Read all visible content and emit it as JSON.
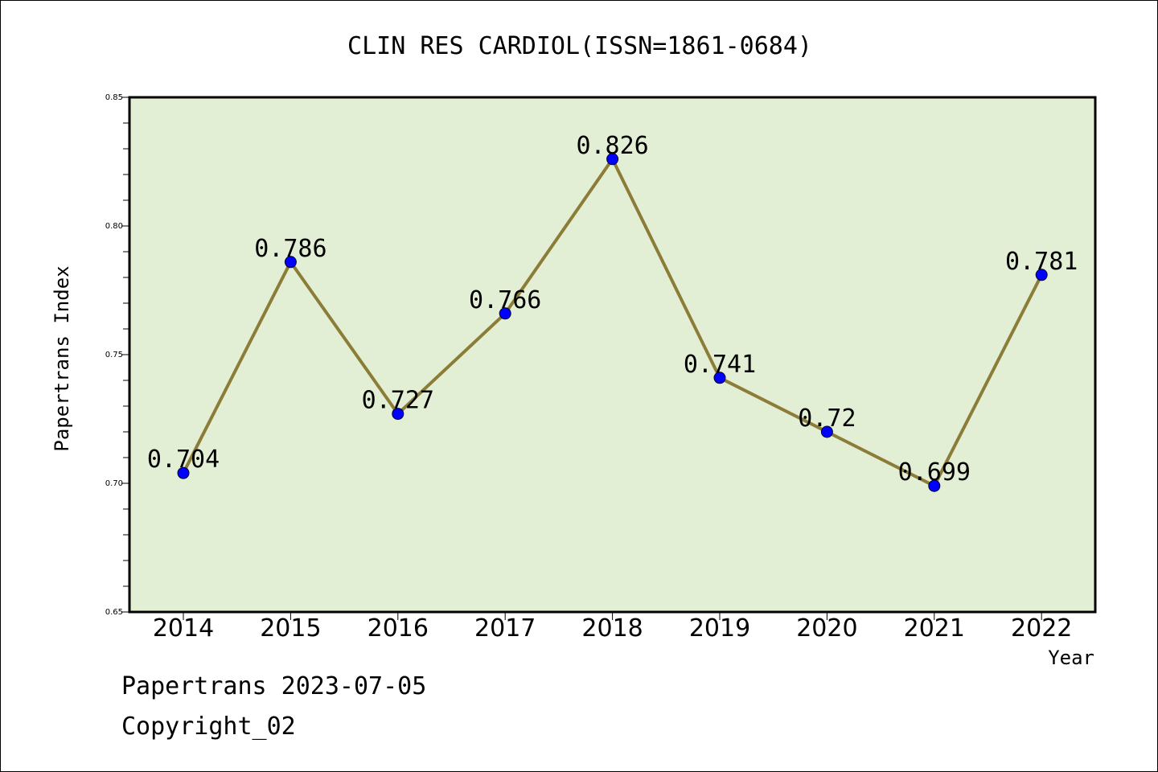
{
  "chart_data": {
    "type": "line",
    "title": "CLIN RES CARDIOL(ISSN=1861-0684)",
    "xlabel": "Year",
    "ylabel": "Papertrans Index",
    "categories": [
      "2014",
      "2015",
      "2016",
      "2017",
      "2018",
      "2019",
      "2020",
      "2021",
      "2022"
    ],
    "series": [
      {
        "values": [
          0.704,
          0.786,
          0.727,
          0.766,
          0.826,
          0.741,
          0.72,
          0.699,
          0.781
        ],
        "data_labels": [
          "0.704",
          "0.786",
          "0.727",
          "0.766",
          "0.826",
          "0.741",
          "0.72",
          "0.699",
          "0.781"
        ]
      }
    ],
    "ylim": [
      0.65,
      0.85
    ],
    "yticks": [
      "0.65",
      "0.70",
      "0.75",
      "0.80",
      "0.85"
    ],
    "grid": false,
    "colors": {
      "plot_background": "#e2efd5",
      "line": "#8b7d37",
      "marker": "#0000ff"
    }
  },
  "footer": {
    "line1": "Papertrans 2023-07-05",
    "line2": "Copyright_02"
  }
}
